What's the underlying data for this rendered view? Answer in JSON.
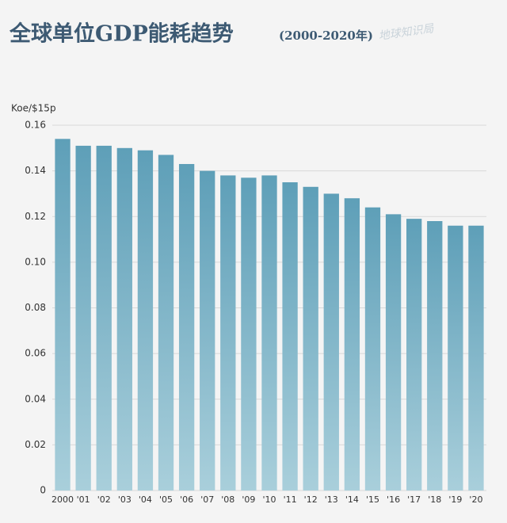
{
  "chart_data": {
    "type": "bar",
    "title": "全球单位GDP能耗趋势",
    "subtitle": "(2000-2020年)",
    "watermark": "地球知识局",
    "y_label": "Koe/$15p",
    "categories": [
      "2000",
      "'01",
      "'02",
      "'03",
      "'04",
      "'05",
      "'06",
      "'07",
      "'08",
      "'09",
      "'10",
      "'11",
      "'12",
      "'13",
      "'14",
      "'15",
      "'16",
      "'17",
      "'18",
      "'19",
      "'20"
    ],
    "values": [
      0.154,
      0.151,
      0.151,
      0.15,
      0.149,
      0.147,
      0.143,
      0.14,
      0.138,
      0.137,
      0.138,
      0.135,
      0.133,
      0.13,
      0.128,
      0.124,
      0.121,
      0.119,
      0.118,
      0.116,
      0.116
    ],
    "color": "#5e9fb8",
    "ylim": [
      0,
      0.16
    ],
    "yticks": [
      0,
      0.02,
      0.04,
      0.06,
      0.08,
      {
        "value": 0.1,
        "label": "0.10"
      },
      0.12,
      0.14,
      0.16
    ],
    "grid": true
  }
}
